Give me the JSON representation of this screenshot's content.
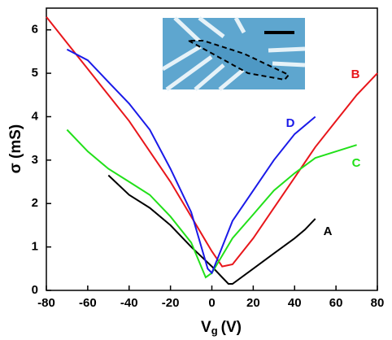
{
  "chart_data": {
    "type": "line",
    "x_label": {
      "main": "V",
      "sub": "g",
      "unit": "(V)"
    },
    "y_label": "σ (mS)",
    "xlim": [
      -80,
      80
    ],
    "xticks": [
      -80,
      -60,
      -40,
      -20,
      0,
      20,
      40,
      60,
      80
    ],
    "ylim": [
      0,
      6.5
    ],
    "yticks": [
      0,
      1,
      2,
      3,
      4,
      5,
      6
    ],
    "series": [
      {
        "name": "A",
        "color": "#000000",
        "x": [
          -50,
          -40,
          -30,
          -20,
          -10,
          0,
          5,
          8,
          10,
          20,
          30,
          40,
          45,
          50
        ],
        "values": [
          2.65,
          2.2,
          1.9,
          1.5,
          1.0,
          0.55,
          0.3,
          0.15,
          0.15,
          0.5,
          0.85,
          1.2,
          1.4,
          1.65
        ]
      },
      {
        "name": "B",
        "color": "#e8161b",
        "x": [
          -80,
          -70,
          -60,
          -50,
          -40,
          -30,
          -20,
          -10,
          0,
          5,
          10,
          20,
          30,
          40,
          50,
          60,
          70,
          80
        ],
        "values": [
          6.3,
          5.7,
          5.1,
          4.5,
          3.9,
          3.2,
          2.5,
          1.7,
          0.9,
          0.55,
          0.6,
          1.2,
          1.9,
          2.6,
          3.3,
          3.9,
          4.5,
          5.0
        ]
      },
      {
        "name": "C",
        "color": "#22e01a",
        "x": [
          -70,
          -60,
          -50,
          -40,
          -30,
          -20,
          -10,
          -3,
          0,
          5,
          10,
          20,
          30,
          40,
          50,
          60,
          70
        ],
        "values": [
          3.7,
          3.2,
          2.8,
          2.5,
          2.2,
          1.7,
          1.1,
          0.3,
          0.4,
          0.8,
          1.2,
          1.75,
          2.3,
          2.7,
          3.05,
          3.2,
          3.35
        ]
      },
      {
        "name": "D",
        "color": "#1a1ae8",
        "x": [
          -70,
          -60,
          -50,
          -40,
          -30,
          -20,
          -10,
          -2,
          0,
          5,
          10,
          20,
          30,
          40,
          50
        ],
        "values": [
          5.55,
          5.3,
          4.8,
          4.3,
          3.7,
          2.8,
          1.8,
          0.5,
          0.4,
          1.0,
          1.6,
          2.3,
          3.0,
          3.6,
          4.0
        ]
      }
    ]
  }
}
